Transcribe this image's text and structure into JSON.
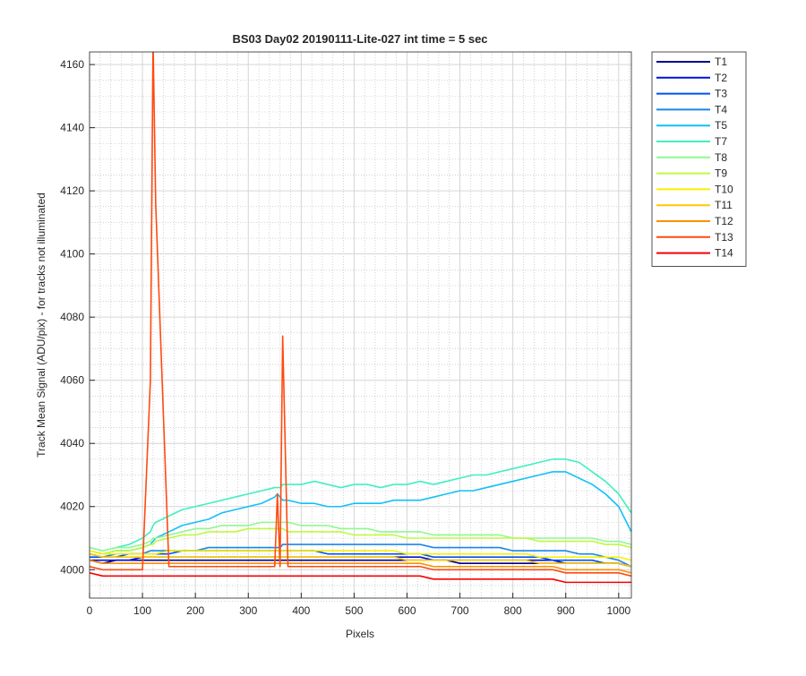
{
  "chart_data": {
    "type": "line",
    "title": "BS03 Day02 20190111-Lite-027 int time = 5 sec",
    "xlabel": "Pixels",
    "ylabel": "Track Mean Signal (ADU/pix) - for tracks not illuminated",
    "xlim": [
      0,
      1024
    ],
    "ylim": [
      3991,
      4164
    ],
    "xticks": [
      0,
      100,
      200,
      300,
      400,
      500,
      600,
      700,
      800,
      900,
      1000
    ],
    "yticks": [
      4000,
      4020,
      4040,
      4060,
      4080,
      4100,
      4120,
      4140,
      4160
    ],
    "grid": true,
    "minor_grid": true,
    "legend": "northeastoutside",
    "x": [
      0,
      25,
      50,
      75,
      100,
      115,
      120,
      125,
      150,
      175,
      200,
      225,
      250,
      275,
      300,
      325,
      350,
      355,
      360,
      365,
      375,
      400,
      425,
      450,
      475,
      500,
      525,
      550,
      575,
      600,
      625,
      650,
      675,
      700,
      725,
      750,
      775,
      800,
      825,
      850,
      875,
      900,
      925,
      950,
      975,
      1000,
      1024
    ],
    "series": [
      {
        "name": "T1",
        "color": "#00008f",
        "values": [
          4003,
          4002,
          4003,
          4003,
          4003,
          4003,
          4003,
          4003,
          4003,
          4003,
          4003,
          4003,
          4003,
          4003,
          4003,
          4003,
          4003,
          4003,
          4003,
          4003,
          4003,
          4003,
          4003,
          4003,
          4003,
          4003,
          4003,
          4003,
          4003,
          4003,
          4003,
          4003,
          4003,
          4002,
          4002,
          4002,
          4002,
          4002,
          4002,
          4002,
          4002,
          4002,
          4002,
          4002,
          4002,
          4002,
          4001
        ]
      },
      {
        "name": "T2",
        "color": "#0010d8",
        "values": [
          4003,
          4003,
          4003,
          4003,
          4004,
          4004,
          4004,
          4004,
          4004,
          4004,
          4004,
          4004,
          4004,
          4004,
          4004,
          4004,
          4004,
          4004,
          4004,
          4004,
          4004,
          4004,
          4004,
          4004,
          4004,
          4004,
          4004,
          4004,
          4004,
          4004,
          4004,
          4003,
          4003,
          4003,
          4003,
          4003,
          4003,
          4003,
          4003,
          4003,
          4003,
          4002,
          4002,
          4002,
          4002,
          4002,
          4001
        ]
      },
      {
        "name": "T3",
        "color": "#0050f0",
        "values": [
          4004,
          4004,
          4004,
          4005,
          4005,
          4005,
          4005,
          4005,
          4005,
          4006,
          4006,
          4006,
          4006,
          4006,
          4006,
          4006,
          4006,
          4006,
          4006,
          4006,
          4006,
          4006,
          4006,
          4005,
          4005,
          4005,
          4005,
          4005,
          4005,
          4005,
          4005,
          4004,
          4004,
          4004,
          4004,
          4004,
          4004,
          4004,
          4004,
          4004,
          4003,
          4003,
          4003,
          4003,
          4002,
          4002,
          4001
        ]
      },
      {
        "name": "T4",
        "color": "#1a86e8",
        "values": [
          4005,
          4004,
          4005,
          4005,
          4005,
          4006,
          4006,
          4006,
          4006,
          4006,
          4006,
          4007,
          4007,
          4007,
          4007,
          4007,
          4007,
          4007,
          4007,
          4008,
          4008,
          4008,
          4008,
          4008,
          4008,
          4008,
          4008,
          4008,
          4008,
          4008,
          4008,
          4007,
          4007,
          4007,
          4007,
          4007,
          4007,
          4006,
          4006,
          4006,
          4006,
          4006,
          4005,
          4005,
          4004,
          4003,
          4001
        ]
      },
      {
        "name": "T5",
        "color": "#10c0f8",
        "values": [
          4006,
          4005,
          4006,
          4006,
          4007,
          4008,
          4009,
          4010,
          4012,
          4014,
          4015,
          4016,
          4018,
          4019,
          4020,
          4021,
          4023,
          4024,
          4023,
          4022,
          4022,
          4021,
          4021,
          4020,
          4020,
          4021,
          4021,
          4021,
          4022,
          4022,
          4022,
          4023,
          4024,
          4025,
          4025,
          4026,
          4027,
          4028,
          4029,
          4030,
          4031,
          4031,
          4029,
          4027,
          4024,
          4020,
          4012
        ]
      },
      {
        "name": "T7",
        "color": "#40f0c0",
        "values": [
          4007,
          4006,
          4007,
          4008,
          4010,
          4012,
          4014,
          4015,
          4017,
          4019,
          4020,
          4021,
          4022,
          4023,
          4024,
          4025,
          4026,
          4026,
          4026,
          4027,
          4027,
          4027,
          4028,
          4027,
          4026,
          4027,
          4027,
          4026,
          4027,
          4027,
          4028,
          4027,
          4028,
          4029,
          4030,
          4030,
          4031,
          4032,
          4033,
          4034,
          4035,
          4035,
          4034,
          4031,
          4028,
          4024,
          4018
        ]
      },
      {
        "name": "T8",
        "color": "#90f890",
        "values": [
          4007,
          4006,
          4007,
          4007,
          4008,
          4009,
          4010,
          4010,
          4011,
          4012,
          4013,
          4013,
          4014,
          4014,
          4014,
          4015,
          4015,
          4015,
          4015,
          4015,
          4015,
          4014,
          4014,
          4014,
          4013,
          4013,
          4013,
          4012,
          4012,
          4012,
          4012,
          4011,
          4011,
          4011,
          4011,
          4011,
          4011,
          4010,
          4010,
          4010,
          4010,
          4010,
          4010,
          4010,
          4009,
          4009,
          4008
        ]
      },
      {
        "name": "T9",
        "color": "#c0f840",
        "values": [
          4006,
          4005,
          4006,
          4006,
          4007,
          4008,
          4008,
          4009,
          4010,
          4011,
          4011,
          4012,
          4012,
          4012,
          4013,
          4013,
          4013,
          4013,
          4013,
          4013,
          4012,
          4012,
          4012,
          4012,
          4012,
          4011,
          4011,
          4011,
          4011,
          4010,
          4010,
          4010,
          4010,
          4010,
          4010,
          4010,
          4010,
          4010,
          4010,
          4009,
          4009,
          4009,
          4009,
          4009,
          4008,
          4008,
          4007
        ]
      },
      {
        "name": "T10",
        "color": "#f8f000",
        "values": [
          4006,
          4005,
          4005,
          4005,
          4005,
          4005,
          4005,
          4005,
          4006,
          4006,
          4006,
          4006,
          4006,
          4006,
          4006,
          4006,
          4006,
          4006,
          4006,
          4006,
          4006,
          4006,
          4006,
          4006,
          4006,
          4006,
          4006,
          4006,
          4006,
          4005,
          4005,
          4005,
          4005,
          4005,
          4005,
          4005,
          4005,
          4005,
          4005,
          4004,
          4004,
          4004,
          4004,
          4004,
          4004,
          4004,
          4003
        ]
      },
      {
        "name": "T11",
        "color": "#ffc800",
        "values": [
          4005,
          4004,
          4004,
          4004,
          4004,
          4004,
          4004,
          4004,
          4004,
          4004,
          4004,
          4004,
          4004,
          4004,
          4004,
          4004,
          4004,
          4004,
          4004,
          4004,
          4004,
          4004,
          4004,
          4004,
          4004,
          4004,
          4004,
          4004,
          4004,
          4003,
          4003,
          4003,
          4003,
          4003,
          4003,
          4003,
          4003,
          4003,
          4003,
          4002,
          4002,
          4002,
          4002,
          4002,
          4002,
          4002,
          4001
        ]
      },
      {
        "name": "T12",
        "color": "#ff9000",
        "values": [
          4003,
          4002,
          4002,
          4002,
          4002,
          4002,
          4002,
          4002,
          4002,
          4002,
          4002,
          4002,
          4002,
          4002,
          4002,
          4002,
          4002,
          4002,
          4002,
          4002,
          4002,
          4002,
          4002,
          4002,
          4002,
          4002,
          4002,
          4002,
          4002,
          4002,
          4002,
          4001,
          4001,
          4001,
          4001,
          4001,
          4001,
          4001,
          4001,
          4001,
          4001,
          4000,
          4000,
          4000,
          4000,
          4000,
          3999
        ]
      },
      {
        "name": "T13",
        "color": "#ff4a10",
        "values": [
          4001,
          4000,
          4000,
          4000,
          4000,
          4060,
          4168,
          4116,
          4001,
          4001,
          4001,
          4001,
          4001,
          4001,
          4001,
          4001,
          4001,
          4024,
          4001,
          4074,
          4001,
          4001,
          4001,
          4001,
          4001,
          4001,
          4001,
          4001,
          4001,
          4001,
          4001,
          4000,
          4000,
          4000,
          4000,
          4000,
          4000,
          4000,
          4000,
          4000,
          4000,
          3999,
          3999,
          3999,
          3999,
          3999,
          3998
        ]
      },
      {
        "name": "T14",
        "color": "#f80000",
        "values": [
          3999,
          3998,
          3998,
          3998,
          3998,
          3998,
          3998,
          3998,
          3998,
          3998,
          3998,
          3998,
          3998,
          3998,
          3998,
          3998,
          3998,
          3998,
          3998,
          3998,
          3998,
          3998,
          3998,
          3998,
          3998,
          3998,
          3998,
          3998,
          3998,
          3998,
          3998,
          3997,
          3997,
          3997,
          3997,
          3997,
          3997,
          3997,
          3997,
          3997,
          3997,
          3996,
          3996,
          3996,
          3996,
          3996,
          3996
        ]
      }
    ]
  }
}
